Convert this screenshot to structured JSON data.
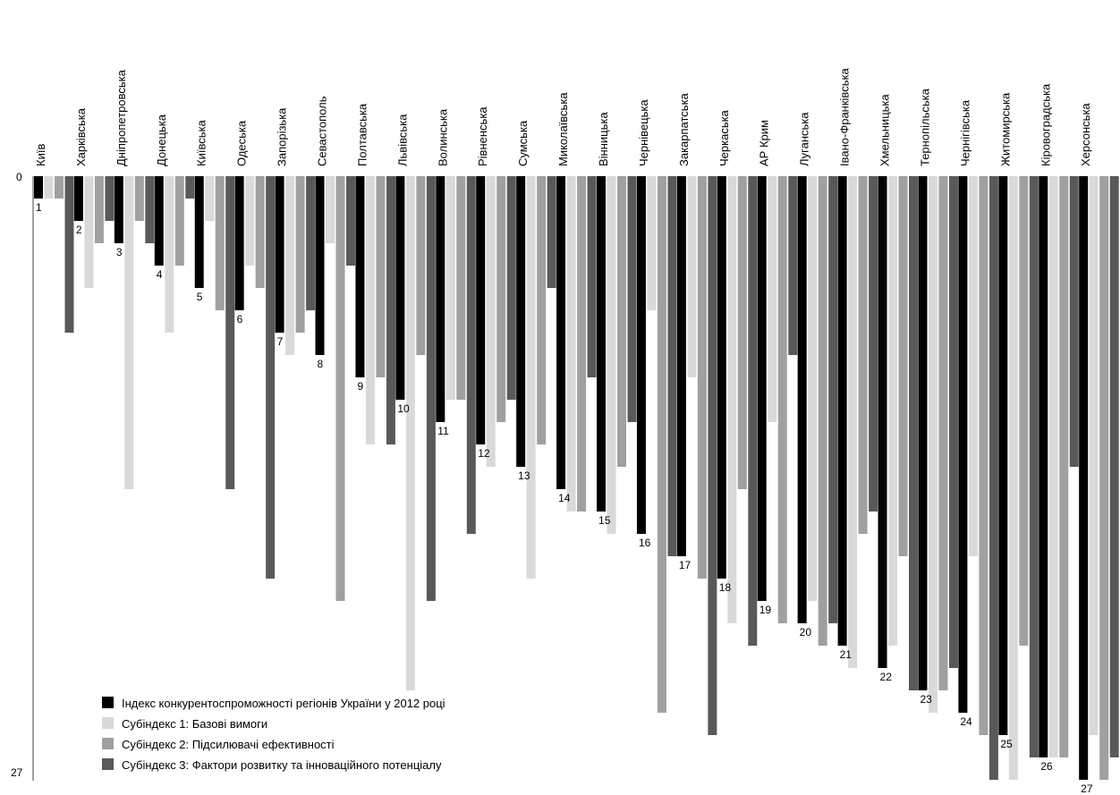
{
  "chart_data": {
    "type": "bar",
    "orientation": "inverted-vertical",
    "title": "",
    "xlabel": "",
    "ylabel": "",
    "ylim": [
      0,
      27
    ],
    "y_ticks": [
      "0",
      "27"
    ],
    "grid": false,
    "legend_position": "bottom-left",
    "categories": [
      "Київ",
      "Харківська",
      "Дніпропетровська",
      "Донецька",
      "Київська",
      "Одеська",
      "Запорізька",
      "Севастополь",
      "Полтавська",
      "Львівська",
      "Волинська",
      "Рівненська",
      "Сумська",
      "Миколаївська",
      "Вінницька",
      "Чернівецька",
      "Закарпатська",
      "Черкаська",
      "АР Крим",
      "Луганська",
      "Івано-Франківська",
      "Хмельницька",
      "Тернопільська",
      "Чернігівська",
      "Житомирська",
      "Кіровоградська",
      "Херсонська"
    ],
    "rank_labels": [
      "1",
      "2",
      "3",
      "4",
      "5",
      "6",
      "7",
      "8",
      "9",
      "10",
      "11",
      "12",
      "13",
      "14",
      "15",
      "16",
      "17",
      "18",
      "19",
      "20",
      "21",
      "22",
      "23",
      "24",
      "25",
      "26",
      "27"
    ],
    "series": [
      {
        "name": "Індекс конкурентоспроможності регіонів України у 2012 році",
        "color": "#000000",
        "values": [
          1,
          2,
          3,
          4,
          5,
          6,
          7,
          8,
          9,
          10,
          11,
          12,
          13,
          14,
          15,
          16,
          17,
          18,
          19,
          20,
          21,
          22,
          23,
          24,
          25,
          26,
          27
        ]
      },
      {
        "name": "Субіндекс 1: Базові вимоги",
        "color": "#d9d9d9",
        "values": [
          1,
          5,
          14,
          7,
          2,
          4,
          8,
          3,
          12,
          23,
          10,
          13,
          18,
          15,
          16,
          6,
          9,
          20,
          11,
          19,
          22,
          21,
          24,
          17,
          27,
          26,
          25
        ]
      },
      {
        "name": "Субіндекс 2: Підсилювачі ефективності",
        "color": "#a0a0a0",
        "values": [
          1,
          3,
          2,
          4,
          6,
          5,
          7,
          19,
          9,
          8,
          10,
          11,
          12,
          15,
          13,
          24,
          18,
          14,
          20,
          21,
          16,
          17,
          23,
          25,
          21,
          26,
          27
        ]
      },
      {
        "name": "Субіндекс 3: Фактори розвитку та інноваційного потенціалу",
        "color": "#595959",
        "values": [
          7,
          2,
          3,
          1,
          14,
          18,
          6,
          4,
          12,
          19,
          16,
          10,
          5,
          9,
          11,
          17,
          25,
          21,
          8,
          20,
          15,
          23,
          22,
          27,
          26,
          13,
          26
        ]
      }
    ]
  },
  "legend": [
    {
      "label": "Індекс конкурентоспроможності регіонів України у 2012 році",
      "color": "#000000"
    },
    {
      "label": "Субіндекс 1: Базові вимоги",
      "color": "#d9d9d9"
    },
    {
      "label": "Субіндекс 2: Підсилювачі ефективності",
      "color": "#a0a0a0"
    },
    {
      "label": "Субіндекс 3: Фактори розвитку та інноваційного потенціалу",
      "color": "#595959"
    }
  ]
}
